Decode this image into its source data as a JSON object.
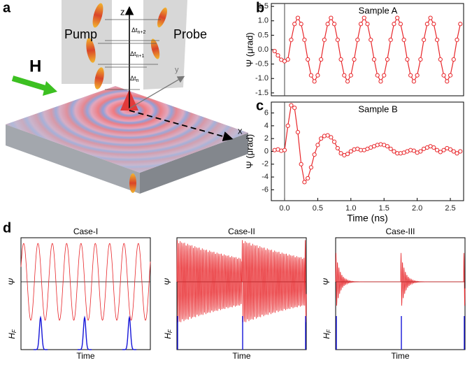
{
  "panel_a": {
    "label": "a",
    "pump": "Pump",
    "probe": "Probe",
    "field": "H",
    "axes": [
      "x",
      "y",
      "z"
    ],
    "delays": [
      {
        "main": "Δt",
        "sub": "n+2"
      },
      {
        "main": "Δt",
        "sub": "n+1"
      },
      {
        "main": "Δt",
        "sub": "n"
      }
    ]
  },
  "chart_data": [
    {
      "type": "line",
      "panel": "b",
      "title": "Sample A",
      "ylabel": "Ψ (μrad)",
      "color": "#e8262a",
      "xlim": [
        -0.2,
        2.7
      ],
      "ylim": [
        -1.6,
        1.6
      ],
      "yticks": [
        -1.5,
        {
          "value": -1,
          "label": "-1.0"
        },
        -0.5,
        {
          "value": 0,
          "label": "0.0"
        },
        0.5,
        {
          "value": 1,
          "label": "1.0"
        },
        1.5
      ],
      "x": [
        -0.15,
        -0.1,
        -0.05,
        0,
        0.05,
        0.1,
        0.15,
        0.2,
        0.25,
        0.3,
        0.35,
        0.4,
        0.45,
        0.5,
        0.55,
        0.6,
        0.65,
        0.7,
        0.75,
        0.8,
        0.85,
        0.9,
        0.95,
        1,
        1.05,
        1.1,
        1.15,
        1.2,
        1.25,
        1.3,
        1.35,
        1.4,
        1.45,
        1.5,
        1.55,
        1.6,
        1.65,
        1.7,
        1.75,
        1.8,
        1.85,
        1.9,
        1.95,
        2,
        2.05,
        2.1,
        2.15,
        2.2,
        2.25,
        2.3,
        2.35,
        2.4,
        2.45,
        2.5,
        2.55,
        2.6,
        2.65
      ],
      "values": [
        -0.05,
        -0.2,
        -0.35,
        -0.4,
        -0.34,
        0.34,
        0.89,
        1.1,
        0.89,
        0.34,
        -0.34,
        -0.89,
        -1.1,
        -0.89,
        -0.34,
        0.34,
        0.89,
        1.1,
        0.89,
        0.34,
        -0.34,
        -0.89,
        -1.1,
        -0.89,
        -0.34,
        0.34,
        0.89,
        1.1,
        0.89,
        0.34,
        -0.34,
        -0.89,
        -1.1,
        -0.89,
        -0.34,
        0.34,
        0.89,
        1.1,
        0.89,
        0.34,
        -0.34,
        -0.89,
        -1.1,
        -0.89,
        -0.34,
        0.34,
        0.89,
        1.1,
        0.89,
        0.34,
        -0.34,
        -0.89,
        -1.1,
        -0.89,
        -0.34,
        0.34,
        0.89
      ]
    },
    {
      "type": "line",
      "panel": "c",
      "title": "Sample B",
      "ylabel": "Ψ (μrad)",
      "xlabel": "Time (ns)",
      "color": "#e8262a",
      "xlim": [
        -0.2,
        2.7
      ],
      "ylim": [
        -7.7,
        7.7
      ],
      "xticks": [
        {
          "value": 0,
          "label": "0.0"
        },
        0.5,
        {
          "value": 1,
          "label": "1.0"
        },
        1.5,
        {
          "value": 2,
          "label": "2.0"
        },
        2.5
      ],
      "yticks": [
        -6,
        -4,
        -2,
        0,
        2,
        4,
        6
      ],
      "x": [
        -0.15,
        -0.1,
        -0.05,
        0,
        0.05,
        0.1,
        0.15,
        0.2,
        0.25,
        0.3,
        0.35,
        0.4,
        0.45,
        0.5,
        0.55,
        0.6,
        0.65,
        0.7,
        0.75,
        0.8,
        0.85,
        0.9,
        0.95,
        1,
        1.05,
        1.1,
        1.15,
        1.2,
        1.25,
        1.3,
        1.35,
        1.4,
        1.45,
        1.5,
        1.55,
        1.6,
        1.65,
        1.7,
        1.75,
        1.8,
        1.85,
        1.9,
        1.95,
        2,
        2.05,
        2.1,
        2.15,
        2.2,
        2.25,
        2.3,
        2.35,
        2.4,
        2.45,
        2.5,
        2.55,
        2.6,
        2.65
      ],
      "values": [
        0.2,
        0.3,
        0.1,
        0.2,
        4,
        7.2,
        6.8,
        3,
        -2,
        -4.8,
        -4.2,
        -2.5,
        -0.5,
        1,
        2,
        2.4,
        2.5,
        2.2,
        1.5,
        0.5,
        -0.3,
        -0.6,
        -0.4,
        0,
        0.3,
        0.4,
        0.2,
        0.2,
        0.4,
        0.6,
        0.8,
        1,
        1.1,
        1,
        0.8,
        0.4,
        0,
        -0.3,
        -0.3,
        -0.2,
        0,
        0.2,
        0.1,
        -0.2,
        0,
        0.4,
        0.6,
        0.8,
        0.6,
        0.2,
        -0.1,
        0.2,
        0.5,
        0.3,
        0,
        -0.3,
        0
      ]
    }
  ],
  "panel_d": {
    "label": "d",
    "cases": [
      "Case-I",
      "Case-II",
      "Case-III"
    ],
    "y_top": "Ψ",
    "y_bottom": "H",
    "y_bottom_sub": "F",
    "x_label": "Time"
  }
}
